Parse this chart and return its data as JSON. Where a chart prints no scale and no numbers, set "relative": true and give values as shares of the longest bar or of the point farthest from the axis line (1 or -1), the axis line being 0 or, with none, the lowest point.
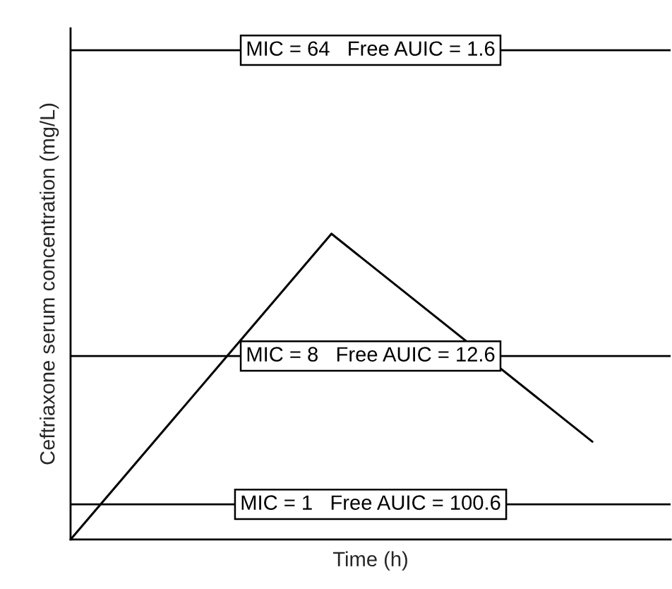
{
  "chart_data": {
    "type": "line",
    "relative": true,
    "xlabel": "Time (h)",
    "ylabel": "Ceftriaxone serum concentration (mg/L)",
    "categories": [
      null,
      null,
      null
    ],
    "series": [
      {
        "color": "#000000",
        "values": [
          0,
          1,
          0.32
        ]
      }
    ],
    "ref_lines": [
      {
        "axis": "y",
        "value": 1.6,
        "color": "#000000"
      },
      {
        "axis": "y",
        "value": 0.6,
        "color": "#000000"
      },
      {
        "axis": "y",
        "value": 0.115,
        "color": "#000000"
      }
    ],
    "annotations": [
      {
        "text": "MIC = 64   Free AUIC = 1.6",
        "y": 1.6
      },
      {
        "text": "MIC = 8   Free AUIC = 12.6",
        "y": 0.6
      },
      {
        "text": "MIC = 1   Free AUIC = 100.6",
        "y": 0.115
      }
    ],
    "grid": false,
    "legend": false,
    "tick_labels": false,
    "marker": "none",
    "line_style": "solid"
  }
}
